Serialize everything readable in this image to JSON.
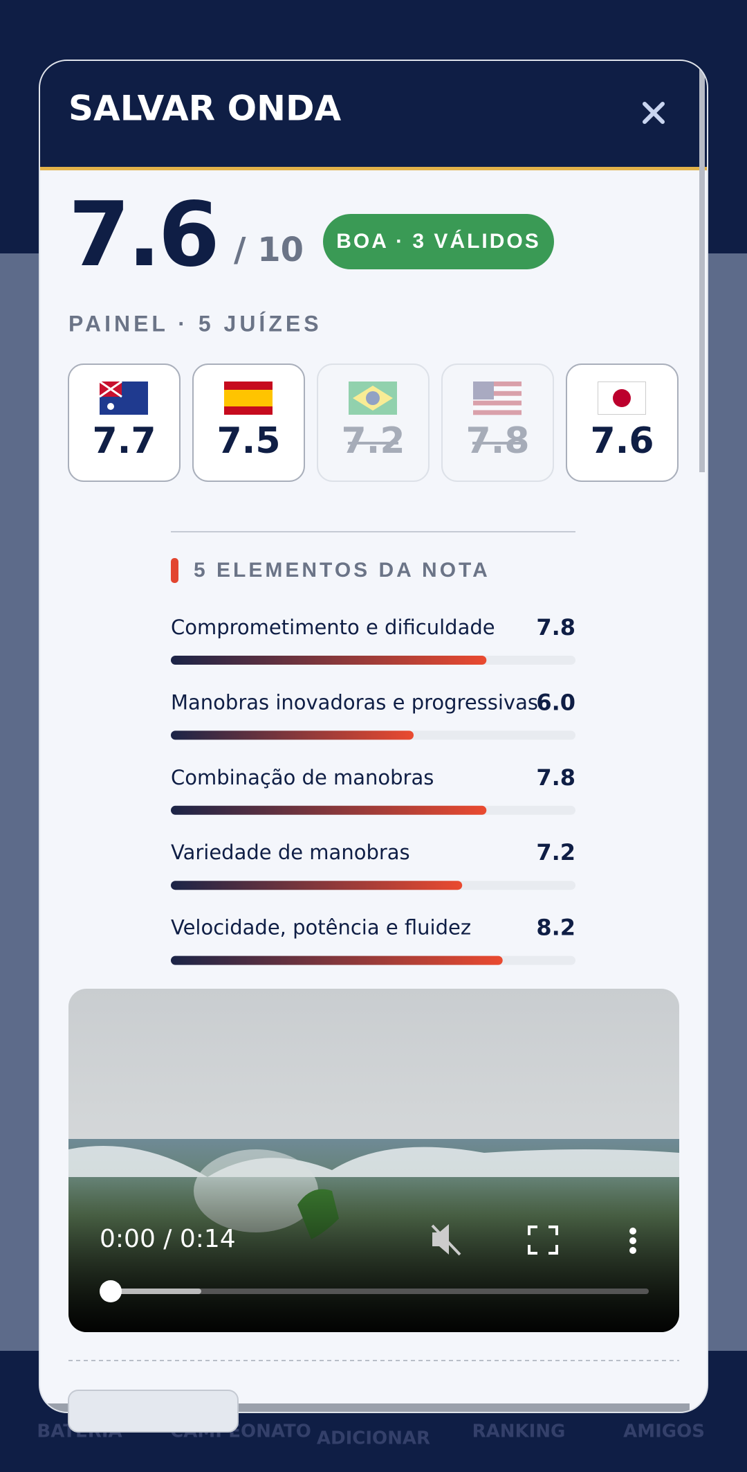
{
  "header": {
    "title": "SALVAR ONDA"
  },
  "score": {
    "value": 7.6,
    "out_of": "/ 10",
    "badge": "BOA · 3 VÁLIDOS"
  },
  "panel": {
    "title": "PAINEL · 5 JUÍZES",
    "scores": [
      7.7,
      7.5,
      7.2,
      7.8,
      7.6
    ],
    "discarded": [
      false,
      false,
      true,
      true,
      false
    ]
  },
  "elements": {
    "title": "5 ELEMENTOS DA NOTA",
    "labels": [
      "Comprometimento e dificuldade",
      "Manobras inovadoras e progressivas",
      "Combinação de manobras",
      "Variedade de manobras",
      "Velocidade, potência e fluidez"
    ],
    "values": [
      7.8,
      6.0,
      7.8,
      7.2,
      8.2
    ],
    "value_labels": [
      "7.8",
      "6.0",
      "7.8",
      "7.2",
      "8.2"
    ],
    "xlim": [
      0,
      10
    ]
  },
  "video": {
    "time": "0:00 / 0:14"
  },
  "nav": {
    "items": [
      "BATERIA",
      "CAMPEONATO",
      "ADICIONAR",
      "RANKING",
      "AMIGOS"
    ]
  }
}
